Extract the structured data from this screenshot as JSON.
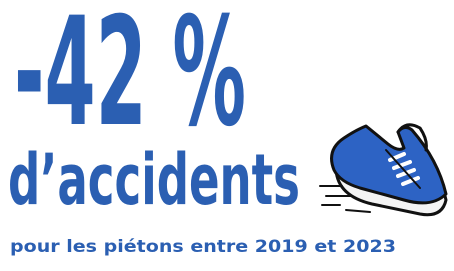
{
  "headline": "-42 %",
  "subheadline": "d’accidents",
  "caption": "pour les piétons entre 2019 et 2023"
}
